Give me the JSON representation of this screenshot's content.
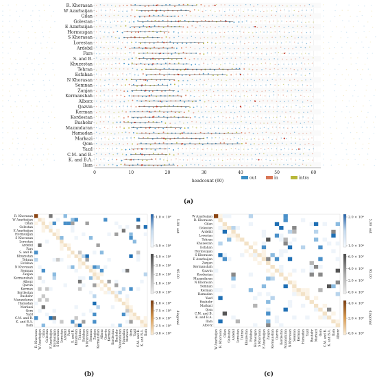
{
  "provinces_a": [
    "R. Khorasan",
    "W Azarbaijan",
    "Gilan",
    "Golestan",
    "E Azarbaijan",
    "Hormozgan",
    "S Khorasan",
    "Lorestan",
    "Ardebil",
    "Fars",
    "S. and B.",
    "Khuzestan",
    "Tehran",
    "Esfahan",
    "N Khorasan",
    "Semnan",
    "Zanjan",
    "Kermanshah",
    "Alborz",
    "Qazvin",
    "Kerman",
    "Kordestan",
    "Bushehr",
    "Mazandaran",
    "Hamadan",
    "Markazi",
    "Qom",
    "Yazd",
    "C.M. and B.",
    "K. and B.A.",
    "Ilam"
  ],
  "provinces_c": [
    "W Azarbaijan",
    "R. Khorasan",
    "Gilan",
    "Golestan",
    "Ardebil",
    "Lorestan",
    "Tehran",
    "Khuzestan",
    "Esfahan",
    "Hormozgan",
    "S Khorasan",
    "E Azarbaijan",
    "Zanjan",
    "Kermanshah",
    "Qazvin",
    "Kordestan",
    "Mazandaran",
    "N Khorasan",
    "Semnan",
    "Kerman",
    "Hamadan",
    "Yazd",
    "Bushehr",
    "Markazi",
    "Qom",
    "C.M. and B.",
    "K. and B.A.",
    "Ilam",
    "Alborz"
  ],
  "colors": {
    "out": "#3b8fc6",
    "in": "#d97757",
    "intra": "#b8b83a",
    "grid": "#e6e6e6"
  },
  "chart_data": [
    {
      "panel": "(a)",
      "type": "scatter",
      "xlabel": "headcount (60)",
      "xlim": [
        0,
        62
      ],
      "xticks": [
        0,
        10,
        20,
        30,
        40,
        50,
        60
      ],
      "legend": {
        "placement": "bottom-right",
        "entries": [
          "out",
          "in",
          "intra"
        ]
      },
      "categories_ref": "provinces_a",
      "ranges": [
        [
          10,
          28
        ],
        [
          12,
          26
        ],
        [
          12,
          22
        ],
        [
          12,
          38
        ],
        [
          10,
          24
        ],
        [
          8,
          20
        ],
        [
          8,
          18
        ],
        [
          12,
          30
        ],
        [
          10,
          22
        ],
        [
          12,
          28
        ],
        [
          12,
          24
        ],
        [
          10,
          26
        ],
        [
          14,
          40
        ],
        [
          14,
          36
        ],
        [
          10,
          22
        ],
        [
          10,
          20
        ],
        [
          10,
          22
        ],
        [
          10,
          24
        ],
        [
          12,
          28
        ],
        [
          12,
          26
        ],
        [
          10,
          24
        ],
        [
          10,
          26
        ],
        [
          8,
          18
        ],
        [
          10,
          24
        ],
        [
          12,
          40
        ],
        [
          12,
          30
        ],
        [
          12,
          40
        ],
        [
          10,
          20
        ],
        [
          10,
          20
        ],
        [
          8,
          16
        ],
        [
          8,
          22
        ]
      ],
      "outliers": [
        [
          0,
          33
        ],
        [
          3,
          36
        ],
        [
          4,
          44
        ],
        [
          9,
          52
        ],
        [
          13,
          40
        ],
        [
          18,
          44
        ],
        [
          19,
          40
        ],
        [
          25,
          52
        ],
        [
          27,
          56
        ],
        [
          29,
          45
        ]
      ]
    },
    {
      "panel": "(b)",
      "type": "heatmap",
      "categories_ref": "provinces_a",
      "colorbars": [
        {
          "label": "out",
          "ticks": [
            "1.0 × 10²",
            "5.0 × 10¹"
          ]
        },
        {
          "label": "95.00",
          "ticks": [
            "4.0 × 10¹",
            "3.0 × 10¹",
            "2.0 × 10¹",
            "1.0 × 10¹",
            "0.0 × 10⁰"
          ]
        },
        {
          "label": "diagonal",
          "ticks": [
            "1.0 × 10⁴",
            "7.5 × 10³",
            "5.0 × 10³",
            "2.5 × 10³",
            "0.0 × 10⁰"
          ]
        }
      ],
      "colorbar_top_label": "5.00"
    },
    {
      "panel": "(c)",
      "type": "heatmap",
      "categories_ref": "provinces_c",
      "colorbars": [
        {
          "label": "out",
          "ticks": [
            "2.0 × 10⁴",
            "1.0 × 10⁴"
          ]
        },
        {
          "label": "95.00",
          "ticks": [
            "6.0 × 10²",
            "4.0 × 10²",
            "2.0 × 10²",
            "0.0 × 10⁰"
          ]
        },
        {
          "label": "diagonal",
          "ticks": [
            "4.0 × 10⁴",
            "2.0 × 10⁴",
            "0.0 × 10⁰"
          ]
        }
      ],
      "colorbar_top_label": "5.00"
    }
  ]
}
